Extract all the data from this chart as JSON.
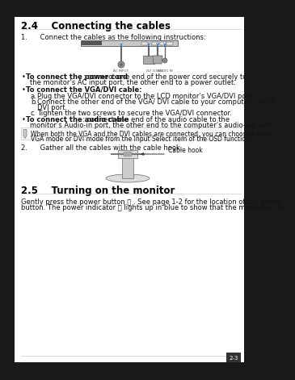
{
  "bg_color": "#1a1a1a",
  "page_bg": "#ffffff",
  "section_2_4_title": "2.4    Connecting the cables",
  "section_2_5_title": "2.5    Turning on the monitor",
  "step1_text": "1.      Connect the cables as the following instructions:",
  "step2_text": "2.      Gather all the cables with the cable hook.",
  "bullet1_bold": "To connect the power cord",
  "bullet1_rest": ": connect one end of the power cord securely to\nthe monitor’s AC input port, the other end to a power outlet.",
  "bullet2_bold": "To connect the VGA/DVI cable",
  "bullet2_rest": ":",
  "sub_a": "a.    Plug the VGA/DVI connector to the LCD monitor’s VGA/DVI port.",
  "sub_b": "b.    Connect the other end of the VGA/ DVI cable to your computer’s VGA/\n         DVI port.",
  "sub_c": "c.    Tighten the two screws to secure the VGA/DVI connector.",
  "bullet3_bold": "To connect the audio cable",
  "bullet3_rest": ": connect one end of the audio cable to the\nmonitor’s Audio-in port, the other end to the computer’s audio-out port.",
  "note_text_1": "When both the VGA and the DVI cables are connected, you can choose either",
  "note_text_2": "VGA mode or DVI mode from the Input Select item of the OSD functions.",
  "section_2_5_body_1": "Gently press the power button ⏻ . See page 1-2 for the location of the power",
  "section_2_5_body_2": "button. The power indicator ⏻ lights up in blue to show that the monitor is ON.",
  "footer_text": "2-3",
  "cable_hook_label": "Cable hook",
  "title_fontsize": 8.5,
  "body_fontsize": 6.0,
  "note_fontsize": 5.5,
  "header_color": "#000000",
  "text_color": "#111111",
  "gray_color": "#888888",
  "border_color": "#cccccc"
}
